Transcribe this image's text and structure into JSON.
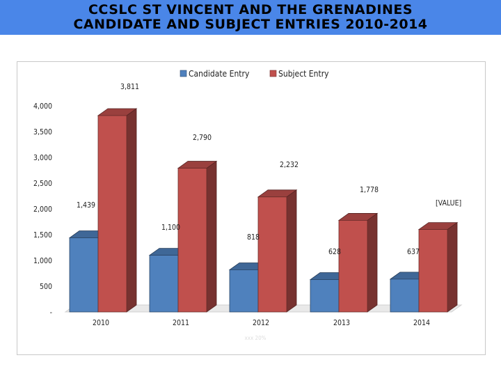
{
  "page": {
    "title_line1": "CCSLC ST VINCENT AND THE GRENADINES",
    "title_line2": "CANDIDATE AND SUBJECT ENTRIES 2010-2014"
  },
  "chart_data": {
    "type": "bar",
    "variant": "3d-clustered-column",
    "categories": [
      "2010",
      "2011",
      "2012",
      "2013",
      "2014"
    ],
    "series": [
      {
        "name": "Candidate Entry",
        "values": [
          1439,
          1100,
          818,
          628,
          637
        ],
        "labels": [
          "1,439",
          "1,100",
          "818",
          "628",
          "637"
        ],
        "color": "#4f81bd"
      },
      {
        "name": "Subject Entry",
        "values": [
          3811,
          2790,
          2232,
          1778,
          1600
        ],
        "labels": [
          "3,811",
          "2,790",
          "2,232",
          "1,778",
          "[VALUE]"
        ],
        "color": "#c0504d"
      }
    ],
    "y_ticks": [
      "-",
      "500",
      "1,000",
      "1,500",
      "2,000",
      "2,500",
      "3,000",
      "3,500",
      "4,000"
    ],
    "ylim": [
      0,
      4000
    ],
    "legend_position": "top",
    "grid": false,
    "footer_note": "xxx 20%"
  }
}
